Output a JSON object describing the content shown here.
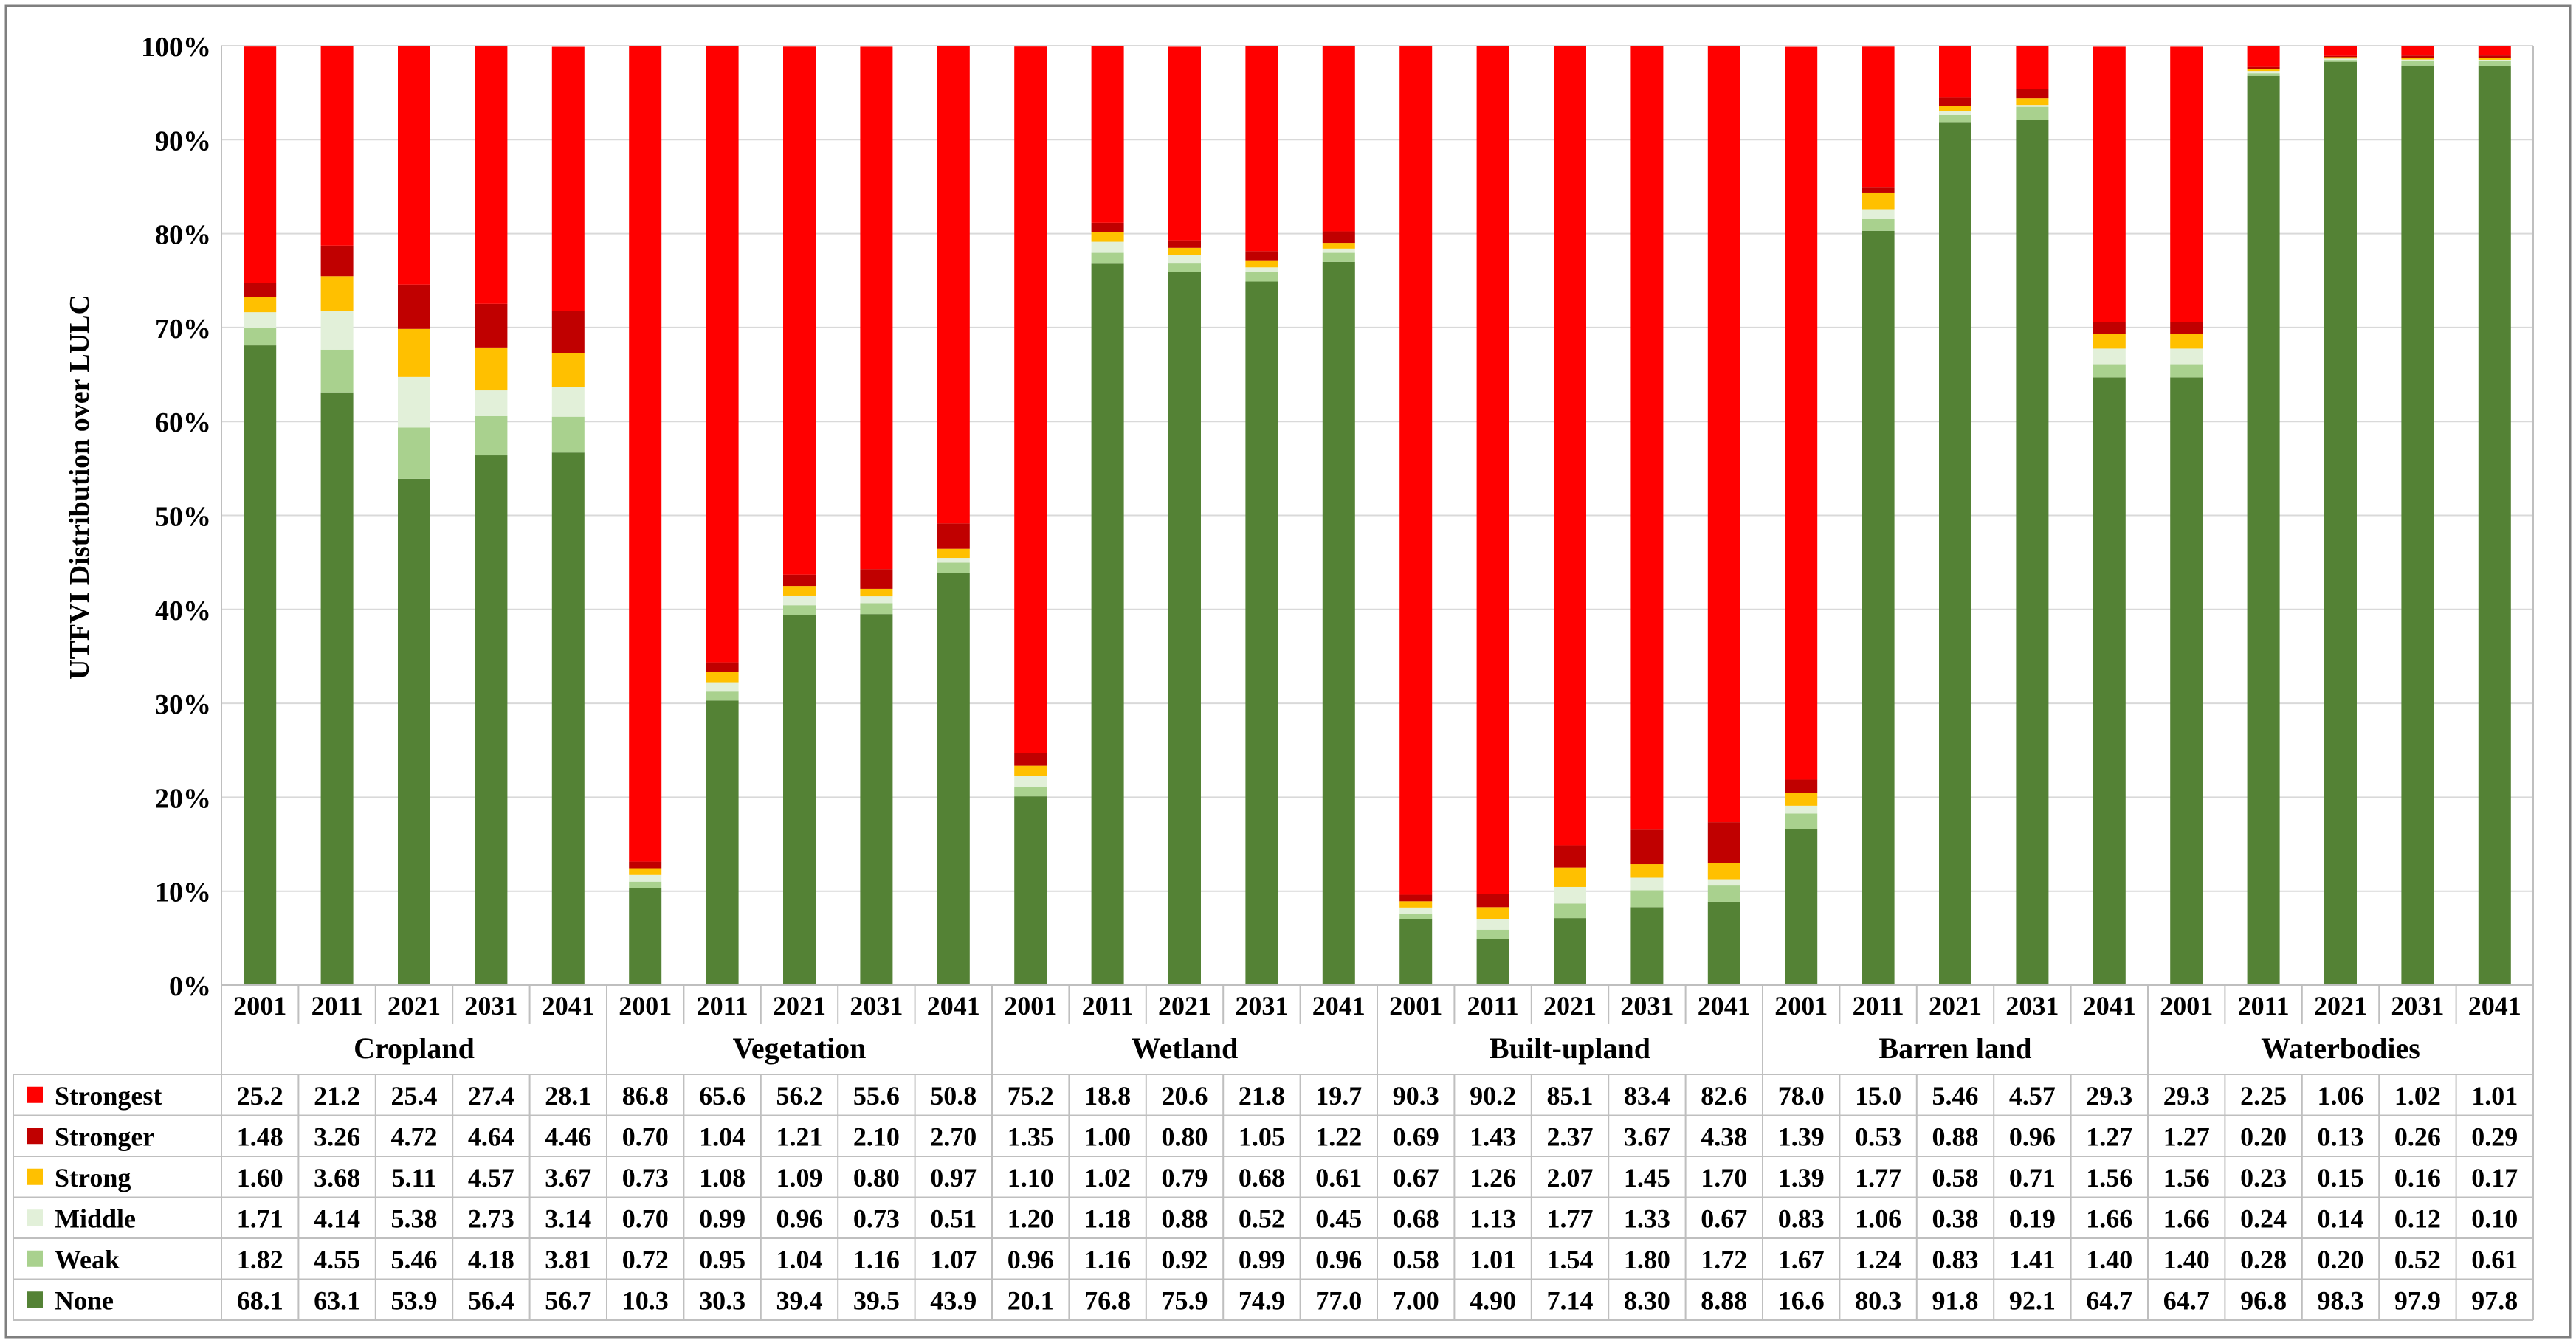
{
  "chart_data": {
    "type": "bar",
    "stacked": "percent",
    "ylabel": "UTFVI Distribution over LULC",
    "ylim": [
      0,
      100
    ],
    "yticks": [
      "0%",
      "10%",
      "20%",
      "30%",
      "40%",
      "50%",
      "60%",
      "70%",
      "80%",
      "90%",
      "100%"
    ],
    "grid": true,
    "legend": "data-table-left",
    "groups": [
      "Cropland",
      "Vegetation",
      "Wetland",
      "Built-upland",
      "Barren land",
      "Waterbodies"
    ],
    "years": [
      "2001",
      "2011",
      "2021",
      "2031",
      "2041"
    ],
    "series": [
      {
        "name": "None",
        "color": "#548235",
        "values": [
          "68.1",
          "63.1",
          "53.9",
          "56.4",
          "56.7",
          "10.3",
          "30.3",
          "39.4",
          "39.5",
          "43.9",
          "20.1",
          "76.8",
          "75.9",
          "74.9",
          "77.0",
          "7.00",
          "4.90",
          "7.14",
          "8.30",
          "8.88",
          "16.6",
          "80.3",
          "91.8",
          "92.1",
          "64.7",
          "64.7",
          "96.8",
          "98.3",
          "97.9",
          "97.8"
        ]
      },
      {
        "name": "Weak",
        "color": "#A9D18E",
        "values": [
          "1.82",
          "4.55",
          "5.46",
          "4.18",
          "3.81",
          "0.72",
          "0.95",
          "1.04",
          "1.16",
          "1.07",
          "0.96",
          "1.16",
          "0.92",
          "0.99",
          "0.96",
          "0.58",
          "1.01",
          "1.54",
          "1.80",
          "1.72",
          "1.67",
          "1.24",
          "0.83",
          "1.41",
          "1.40",
          "1.40",
          "0.28",
          "0.20",
          "0.52",
          "0.61"
        ]
      },
      {
        "name": "Middle",
        "color": "#E2F0D9",
        "values": [
          "1.71",
          "4.14",
          "5.38",
          "2.73",
          "3.14",
          "0.70",
          "0.99",
          "0.96",
          "0.73",
          "0.51",
          "1.20",
          "1.18",
          "0.88",
          "0.52",
          "0.45",
          "0.68",
          "1.13",
          "1.77",
          "1.33",
          "0.67",
          "0.83",
          "1.06",
          "0.38",
          "0.19",
          "1.66",
          "1.66",
          "0.24",
          "0.14",
          "0.12",
          "0.10"
        ]
      },
      {
        "name": "Strong",
        "color": "#FFC000",
        "values": [
          "1.60",
          "3.68",
          "5.11",
          "4.57",
          "3.67",
          "0.73",
          "1.08",
          "1.09",
          "0.80",
          "0.97",
          "1.10",
          "1.02",
          "0.79",
          "0.68",
          "0.61",
          "0.67",
          "1.26",
          "2.07",
          "1.45",
          "1.70",
          "1.39",
          "1.77",
          "0.58",
          "0.71",
          "1.56",
          "1.56",
          "0.23",
          "0.15",
          "0.16",
          "0.17"
        ]
      },
      {
        "name": "Stronger",
        "color": "#C00000",
        "values": [
          "1.48",
          "3.26",
          "4.72",
          "4.64",
          "4.46",
          "0.70",
          "1.04",
          "1.21",
          "2.10",
          "2.70",
          "1.35",
          "1.00",
          "0.80",
          "1.05",
          "1.22",
          "0.69",
          "1.43",
          "2.37",
          "3.67",
          "4.38",
          "1.39",
          "0.53",
          "0.88",
          "0.96",
          "1.27",
          "1.27",
          "0.20",
          "0.13",
          "0.26",
          "0.29"
        ]
      },
      {
        "name": "Strongest",
        "color": "#FF0000",
        "values": [
          "25.2",
          "21.2",
          "25.4",
          "27.4",
          "28.1",
          "86.8",
          "65.6",
          "56.2",
          "55.6",
          "50.8",
          "75.2",
          "18.8",
          "20.6",
          "21.8",
          "19.7",
          "90.3",
          "90.2",
          "85.1",
          "83.4",
          "82.6",
          "78.0",
          "15.0",
          "5.46",
          "4.57",
          "29.3",
          "29.3",
          "2.25",
          "1.06",
          "1.02",
          "1.01"
        ]
      }
    ],
    "table_row_order": [
      "Strongest",
      "Stronger",
      "Strong",
      "Middle",
      "Weak",
      "None"
    ]
  }
}
